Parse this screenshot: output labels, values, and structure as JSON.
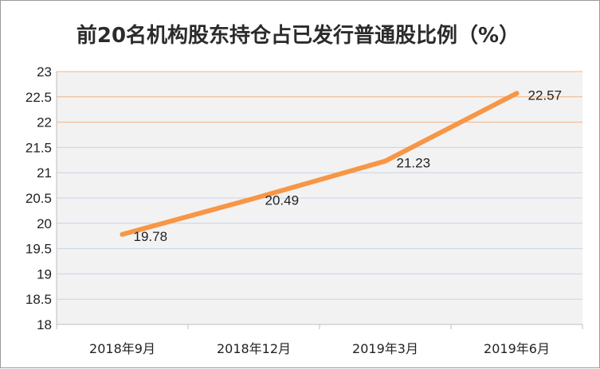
{
  "chart_data": {
    "type": "line",
    "title": "前20名机构股东持仓占已发行普通股比例（%）",
    "categories": [
      "2018年9月",
      "2018年12月",
      "2019年3月",
      "2019年6月"
    ],
    "series": [
      {
        "values": [
          19.78,
          20.49,
          21.23,
          22.57
        ],
        "color": "#f79646"
      }
    ],
    "data_labels": [
      "19.78",
      "20.49",
      "21.23",
      "22.57"
    ],
    "y_ticks": [
      "18",
      "18.5",
      "19",
      "19.5",
      "20",
      "20.5",
      "21",
      "21.5",
      "22",
      "22.5",
      "23"
    ],
    "ylim": [
      18,
      23
    ],
    "xlabel": "",
    "ylabel": "",
    "grid": true,
    "legend": "none",
    "colors": {
      "plot_background": "#f2f2f2",
      "line": "#f79646",
      "grid_low": "#c5d3ea",
      "grid_high": "#f4b27f"
    }
  }
}
